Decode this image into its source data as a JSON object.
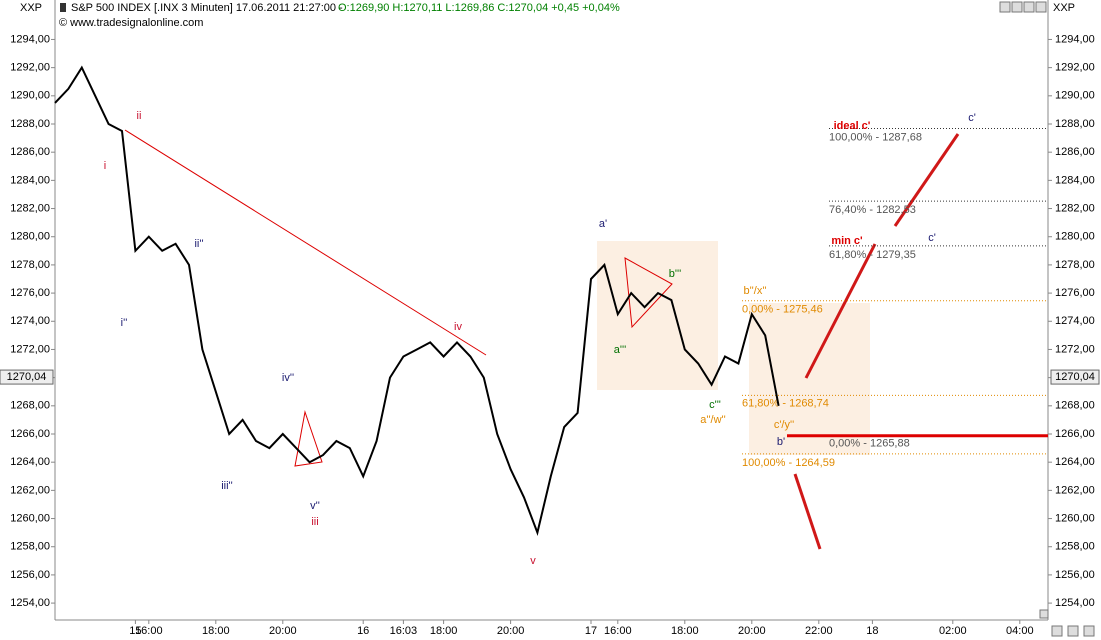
{
  "chart_data": {
    "type": "line",
    "symbol": "XXP",
    "title": "S&P 500 INDEX [.INX  3 Minuten] 17.06.2011 21:27:00 -",
    "ohlc": "O:1269,90 H:1270,11 L:1269,86 C:1270,04 +0,45 +0,04%",
    "source": "© www.tradesignalonline.com",
    "categories": [
      null,
      null,
      null,
      null,
      null,
      null,
      "15",
      "16:00",
      null,
      null,
      null,
      null,
      "18:00",
      null,
      null,
      null,
      null,
      "20:00",
      null,
      null,
      null,
      null,
      null,
      "16",
      null,
      null,
      "16:03",
      null,
      null,
      "18:00",
      null,
      null,
      null,
      null,
      "20:00",
      null,
      null,
      null,
      null,
      null,
      "17",
      null,
      "16:00",
      null,
      null,
      null,
      null,
      "18:00",
      null,
      null,
      null,
      null,
      "20:00",
      null,
      null,
      null,
      null,
      "22:00",
      null,
      null,
      null,
      "18",
      null,
      null,
      null,
      null,
      null,
      "02:00",
      null,
      null,
      null,
      null,
      "04:00",
      null
    ],
    "values": [
      1289.5,
      1290.5,
      1292,
      1290,
      1288,
      1287.5,
      1279,
      1280,
      1279,
      1279.5,
      1278,
      1272,
      1269,
      1266,
      1267,
      1265.5,
      1265,
      1266,
      1265,
      1264,
      1264.5,
      1265.5,
      1265,
      1263,
      1265.5,
      1270,
      1271.5,
      1272,
      1272.5,
      1271.5,
      1272.5,
      1271.5,
      1270,
      1266,
      1263.5,
      1261.5,
      1259,
      1263,
      1266.5,
      1267.5,
      1277,
      1278,
      1274.5,
      1276,
      1275,
      1276,
      1275.5,
      1272,
      1271,
      1269.5,
      1271.5,
      1271,
      1274.5,
      1273,
      1268,
      null,
      null,
      null,
      null,
      null,
      null,
      null,
      null,
      null,
      null,
      null,
      null,
      null,
      null,
      null,
      null,
      null,
      null,
      null
    ],
    "color": "#000000",
    "ylim": [
      1252.8,
      1296.8
    ],
    "yticks": [
      {
        "value": 1254,
        "label": "1254,00"
      },
      {
        "value": 1256,
        "label": "1256,00"
      },
      {
        "value": 1258,
        "label": "1258,00"
      },
      {
        "value": 1260,
        "label": "1260,00"
      },
      {
        "value": 1262,
        "label": "1262,00"
      },
      {
        "value": 1264,
        "label": "1264,00"
      },
      {
        "value": 1266,
        "label": "1266,00"
      },
      {
        "value": 1268,
        "label": "1268,00"
      },
      {
        "value": 1270,
        "label": "1270,00"
      },
      {
        "value": 1272,
        "label": "1272,00"
      },
      {
        "value": 1274,
        "label": "1274,00"
      },
      {
        "value": 1276,
        "label": "1276,00"
      },
      {
        "value": 1278,
        "label": "1278,00"
      },
      {
        "value": 1280,
        "label": "1280,00"
      },
      {
        "value": 1282,
        "label": "1282,00"
      },
      {
        "value": 1284,
        "label": "1284,00"
      },
      {
        "value": 1286,
        "label": "1286,00"
      },
      {
        "value": 1288,
        "label": "1288,00"
      },
      {
        "value": 1290,
        "label": "1290,00"
      },
      {
        "value": 1292,
        "label": "1292,00"
      },
      {
        "value": 1294,
        "label": "1294,00"
      }
    ],
    "last_value": {
      "value": 1270.04,
      "label": "1270,04"
    },
    "levels": [
      {
        "value": 1287.68,
        "label": "100,00% - 1287,68",
        "color": "#555555"
      },
      {
        "value": 1282.53,
        "label": "76,40% - 1282,53",
        "color": "#555555"
      },
      {
        "value": 1279.35,
        "label": "61,80% - 1279,35",
        "color": "#555555"
      },
      {
        "value": 1265.88,
        "label": "0,00% - 1265,88",
        "color": "#dd0000"
      },
      {
        "value": 1275.46,
        "label": "0,00% - 1275,46",
        "color": "#e08a00"
      },
      {
        "value": 1268.74,
        "label": "61,80% - 1268,74",
        "color": "#e08a00"
      },
      {
        "value": 1264.59,
        "label": "100,00% - 1264,59",
        "color": "#e08a00"
      }
    ],
    "annotations": [
      {
        "text": "i",
        "color": "#c8102e"
      },
      {
        "text": "ii",
        "color": "#c8102e"
      },
      {
        "text": "i''",
        "color": "#1a1a70"
      },
      {
        "text": "ii''",
        "color": "#1a1a70"
      },
      {
        "text": "iii''",
        "color": "#1a1a70"
      },
      {
        "text": "iv''",
        "color": "#1a1a70"
      },
      {
        "text": "v''",
        "color": "#1a1a70"
      },
      {
        "text": "iii",
        "color": "#c8102e"
      },
      {
        "text": "iv",
        "color": "#c8102e"
      },
      {
        "text": "v",
        "color": "#c8102e"
      },
      {
        "text": "a'",
        "color": "#1a1a70"
      },
      {
        "text": "a'''",
        "color": "#007000"
      },
      {
        "text": "b'''",
        "color": "#007000"
      },
      {
        "text": "c'''",
        "color": "#007000"
      },
      {
        "text": "a''/w''",
        "color": "#e08a00"
      },
      {
        "text": "b''/x''",
        "color": "#e08a00"
      },
      {
        "text": "c'/y''",
        "color": "#e08a00"
      },
      {
        "text": "b'",
        "color": "#1a1a70"
      },
      {
        "text": "ideal c'",
        "color": "#dd0000"
      },
      {
        "text": "c'",
        "color": "#1a1a70"
      },
      {
        "text": "min c'",
        "color": "#dd0000"
      },
      {
        "text": "c'",
        "color": "#1a1a70"
      }
    ]
  }
}
